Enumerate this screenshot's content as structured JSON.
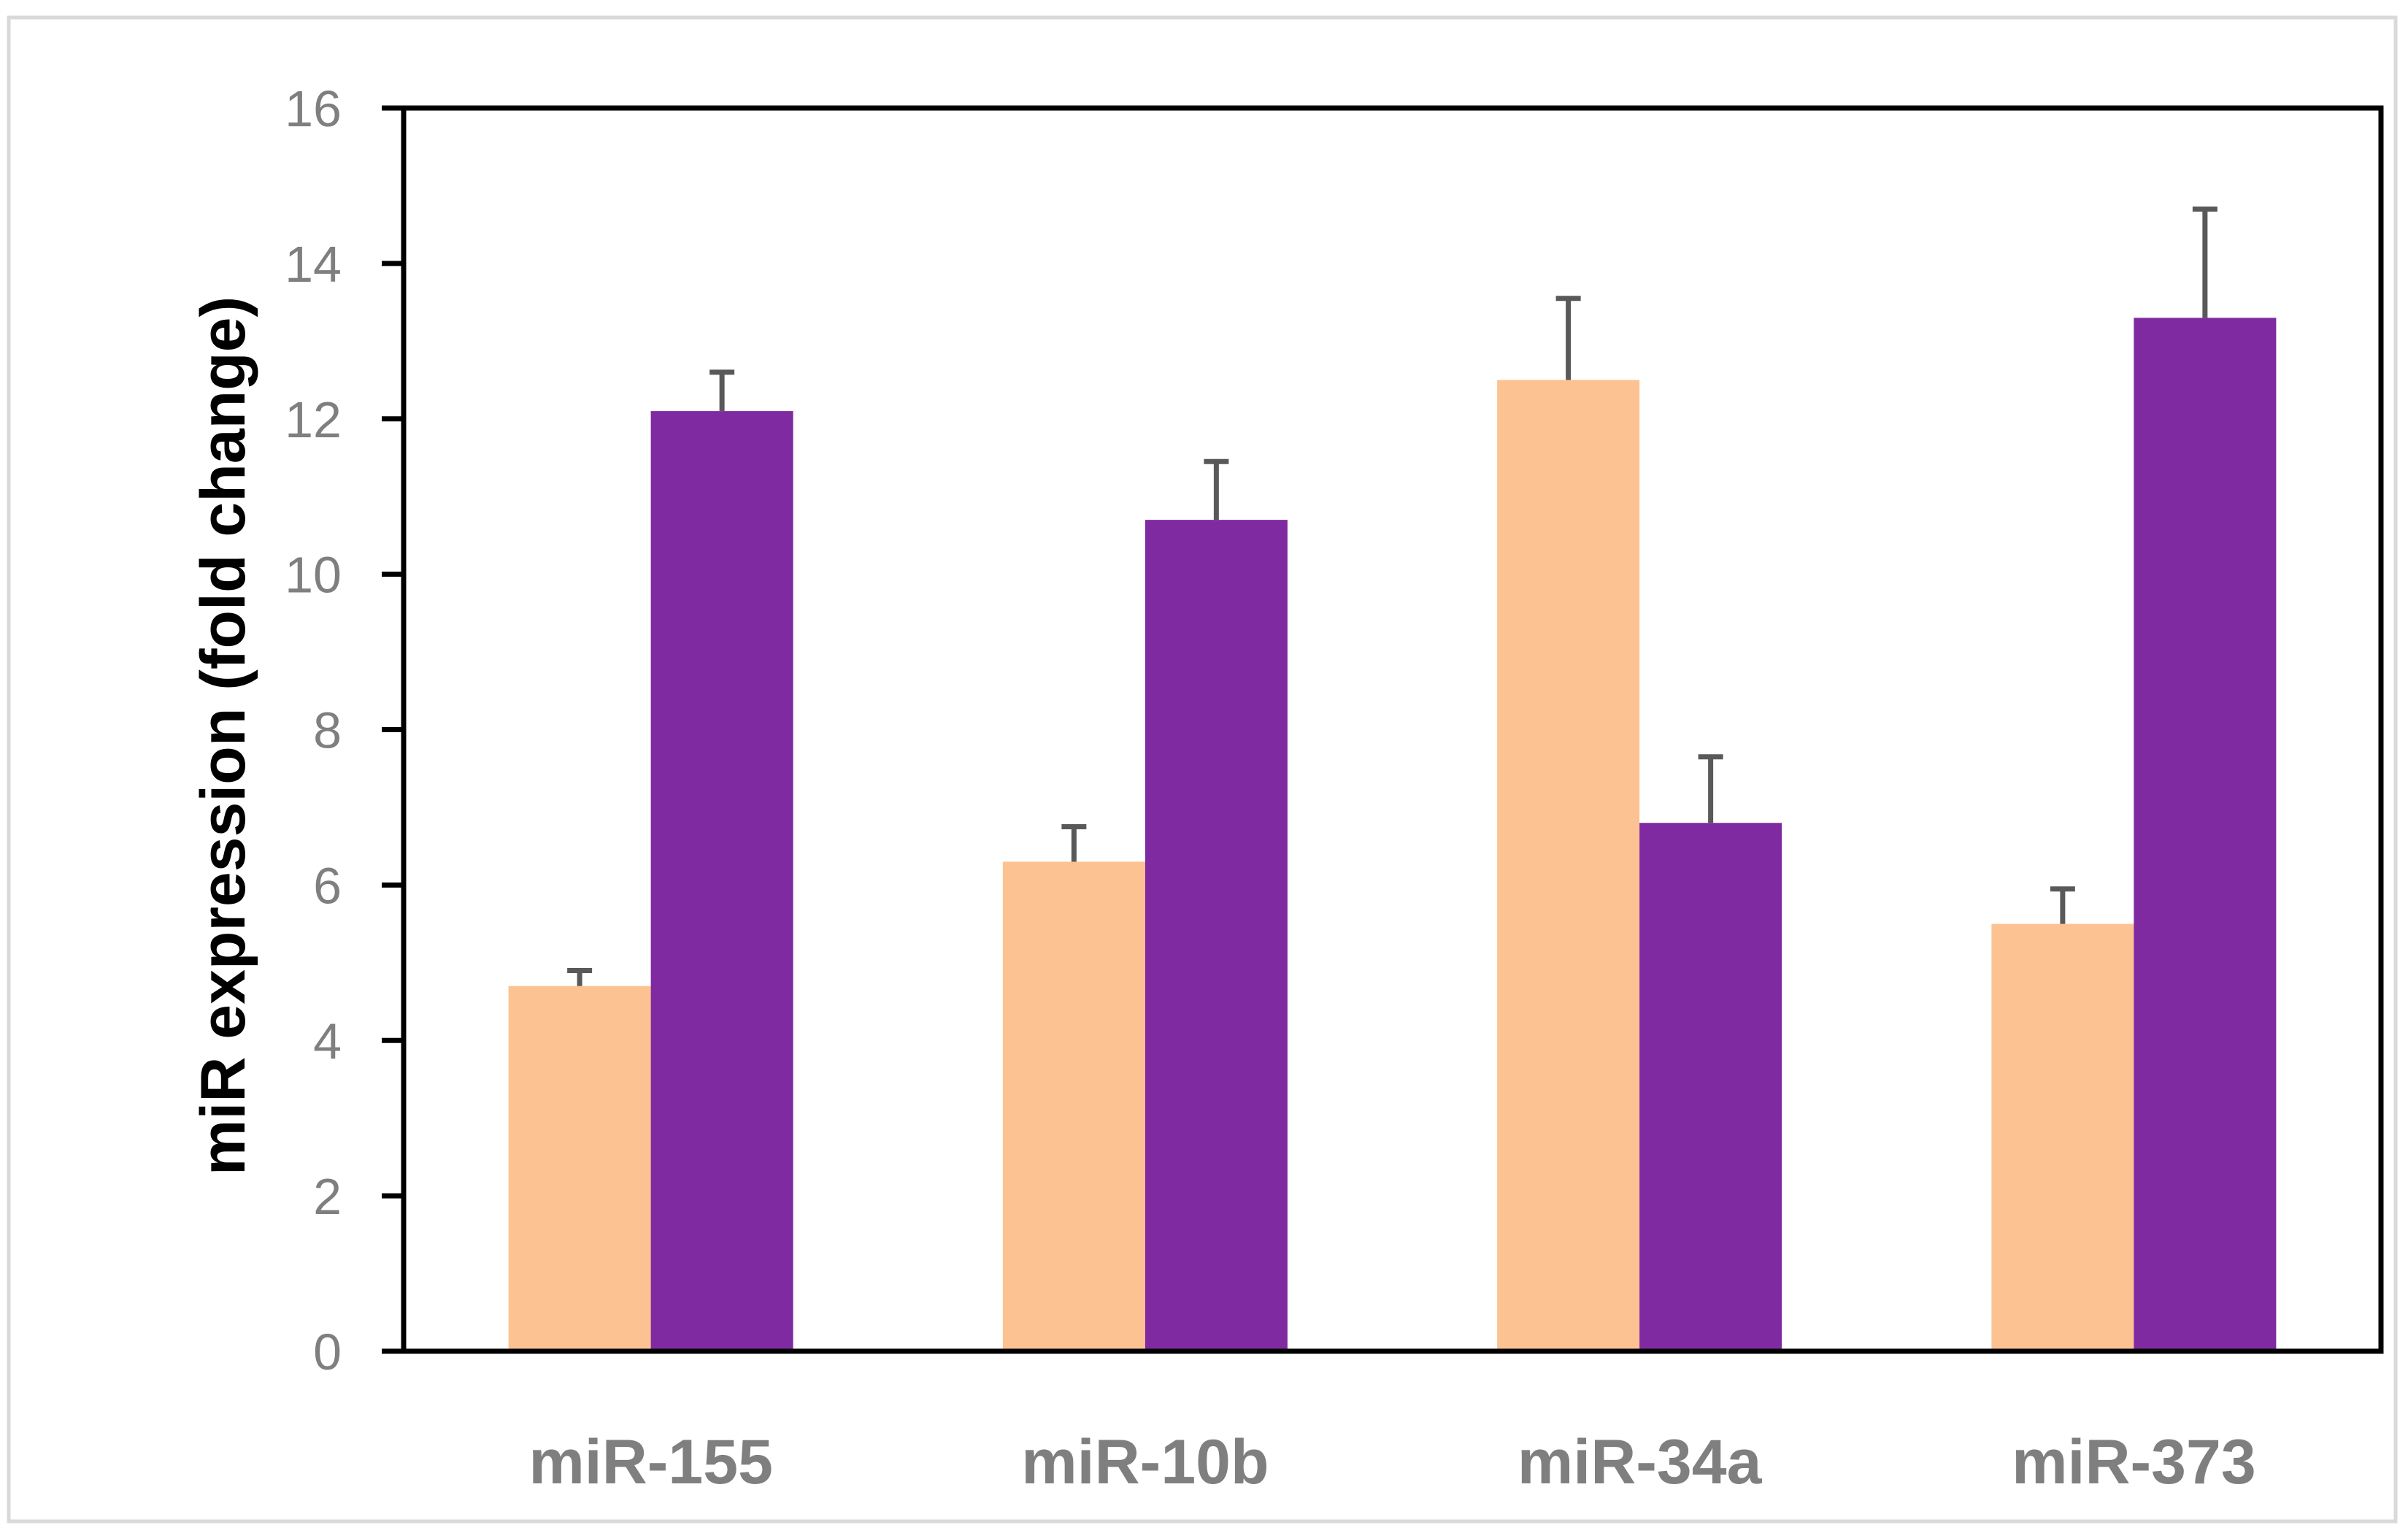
{
  "chart_data": {
    "type": "bar",
    "categories": [
      "miR-155",
      "miR-10b",
      "miR-34a",
      "miR-373"
    ],
    "series": [
      {
        "values": [
          4.7,
          6.3,
          12.5,
          5.5
        ],
        "errors": [
          0.2,
          0.45,
          1.05,
          0.45
        ],
        "color": "#fdc291"
      },
      {
        "values": [
          12.1,
          10.7,
          6.8,
          13.3
        ],
        "errors": [
          0.5,
          0.75,
          0.85,
          1.4
        ],
        "color": "#7f2aa0"
      }
    ],
    "title": "",
    "xlabel": "",
    "ylabel": "miR expression (fold change)",
    "ylim": [
      0,
      16
    ],
    "yticks": [
      0,
      2,
      4,
      6,
      8,
      10,
      12,
      14,
      16
    ],
    "grid": false,
    "legend": "none"
  },
  "colors": {
    "axis": "#000000",
    "error_bar": "#595959",
    "tick_label": "#7f7f7f",
    "frame": "#d9d9d9"
  }
}
